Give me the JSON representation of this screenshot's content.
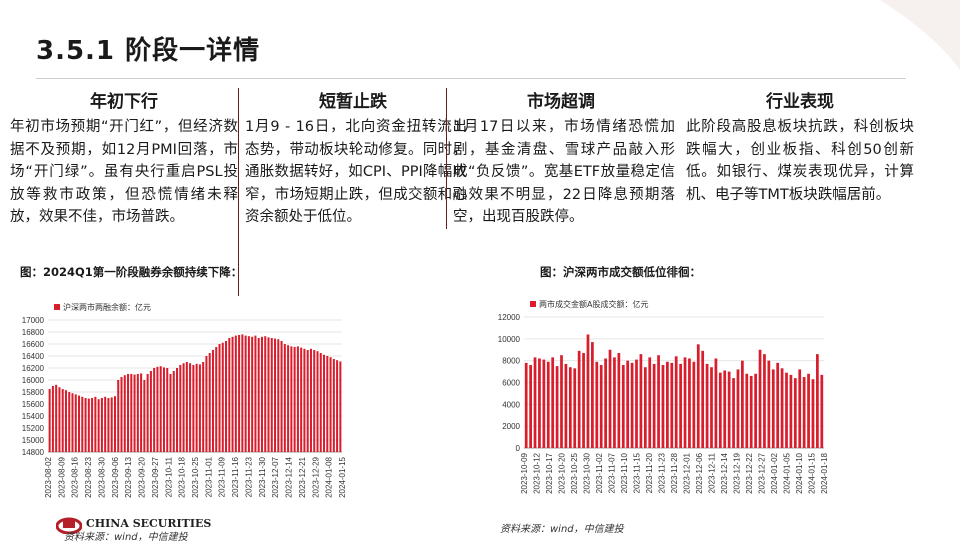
{
  "title": "3.5.1 阶段一详情",
  "columns": [
    {
      "heading": "年初下行",
      "text": "年初市场预期“开门红”，但经济数据不及预期，如12月PMI回落，市场“开门绿”。虽有央行重启PSL投放等救市政策，但恐慌情绪未释放，效果不佳，市场普跌。"
    },
    {
      "heading": "短暂止跌",
      "text": "1月9 - 16日，北向资金扭转流出态势，带动板块轮动修复。同时，通胀数据转好，如CPI、PPI降幅收窄，市场短期止跌，但成交额和融资余额处于低位。"
    },
    {
      "heading": "市场超调",
      "text": "1月17日以来，市场情绪恐慌加剧，基金清盘、雪球产品敲入形成“负反馈”。宽基ETF放量稳定信心效果不明显，22日降息预期落空，出现百股跌停。"
    },
    {
      "heading": "行业表现",
      "text": "此阶段高股息板块抗跌，科创板块跌幅大，创业板指、科创50创新低。如银行、煤炭表现优异，计算机、电子等TMT板块跌幅居前。"
    }
  ],
  "figures": [
    {
      "caption": "图：2024Q1第一阶段融券余额持续下降：",
      "source": "资料来源：wind，中信建投"
    },
    {
      "caption": "图：沪深两市成交额低位徘徊：",
      "source": "资料来源：wind，中信建投"
    }
  ],
  "logo_text": "CHINA SECURITIES",
  "colors": {
    "bar": "#d81e2c",
    "accent": "#6b1a1a",
    "grid": "#e6e6e6"
  },
  "chart_data": [
    {
      "type": "bar",
      "legend": "沪深两市两融余额：亿元",
      "legend_position": "top-left",
      "grid": true,
      "ylim": [
        14800,
        17000
      ],
      "yticks": [
        14800,
        15000,
        15200,
        15400,
        15600,
        15800,
        16000,
        16200,
        16400,
        16600,
        16800,
        17000
      ],
      "xticks": [
        "2023-08-02",
        "2023-08-09",
        "2023-08-16",
        "2023-08-23",
        "2023-08-30",
        "2023-09-06",
        "2023-09-13",
        "2023-09-20",
        "2023-09-27",
        "2023-10-11",
        "2023-10-18",
        "2023-10-25",
        "2023-11-01",
        "2023-11-09",
        "2023-11-16",
        "2023-11-23",
        "2023-11-30",
        "2023-12-07",
        "2023-12-14",
        "2023-12-21",
        "2023-12-29",
        "2024-01-08",
        "2024-01-15"
      ],
      "values": [
        15850,
        15900,
        15920,
        15880,
        15850,
        15830,
        15800,
        15780,
        15760,
        15740,
        15720,
        15700,
        15690,
        15700,
        15720,
        15680,
        15700,
        15720,
        15700,
        15710,
        15730,
        16000,
        16050,
        16080,
        16100,
        16100,
        16090,
        16100,
        16110,
        16000,
        16100,
        16150,
        16200,
        16220,
        16230,
        16210,
        16200,
        16100,
        16150,
        16200,
        16250,
        16280,
        16300,
        16280,
        16250,
        16270,
        16260,
        16300,
        16400,
        16450,
        16500,
        16550,
        16600,
        16620,
        16650,
        16700,
        16720,
        16740,
        16750,
        16760,
        16740,
        16730,
        16720,
        16740,
        16700,
        16720,
        16730,
        16710,
        16700,
        16690,
        16680,
        16650,
        16600,
        16580,
        16560,
        16550,
        16560,
        16540,
        16520,
        16500,
        16520,
        16500,
        16480,
        16450,
        16420,
        16400,
        16380,
        16350,
        16330,
        16310
      ]
    },
    {
      "type": "bar",
      "legend": "两市成交金额A股成交额：亿元",
      "legend_position": "top-left",
      "grid": true,
      "ylim": [
        0,
        12000
      ],
      "yticks": [
        0,
        2000,
        4000,
        6000,
        8000,
        10000,
        12000
      ],
      "xticks": [
        "2023-10-09",
        "2023-10-12",
        "2023-10-17",
        "2023-10-20",
        "2023-10-25",
        "2023-10-30",
        "2023-11-02",
        "2023-11-07",
        "2023-11-10",
        "2023-11-15",
        "2023-11-20",
        "2023-11-23",
        "2023-11-28",
        "2023-12-01",
        "2023-12-06",
        "2023-12-11",
        "2023-12-14",
        "2023-12-19",
        "2023-12-22",
        "2023-12-27",
        "2024-01-02",
        "2024-01-05",
        "2024-01-10",
        "2024-01-15",
        "2024-01-18"
      ],
      "values": [
        7800,
        7600,
        8300,
        8200,
        8100,
        7900,
        8300,
        7500,
        8500,
        7700,
        7400,
        7300,
        8900,
        8700,
        10400,
        9700,
        7900,
        7600,
        8200,
        9000,
        8300,
        8700,
        7600,
        8000,
        7800,
        8100,
        8600,
        7400,
        8300,
        7700,
        8500,
        7600,
        7900,
        7800,
        8400,
        7700,
        8300,
        8200,
        7900,
        9500,
        8900,
        7700,
        7400,
        8200,
        6900,
        7100,
        7000,
        6400,
        7200,
        8000,
        6800,
        6600,
        6800,
        9000,
        8600,
        8000,
        7200,
        7800,
        7300,
        6900,
        6700,
        6400,
        7200,
        6500,
        6800,
        6300,
        8600,
        6700
      ]
    }
  ]
}
